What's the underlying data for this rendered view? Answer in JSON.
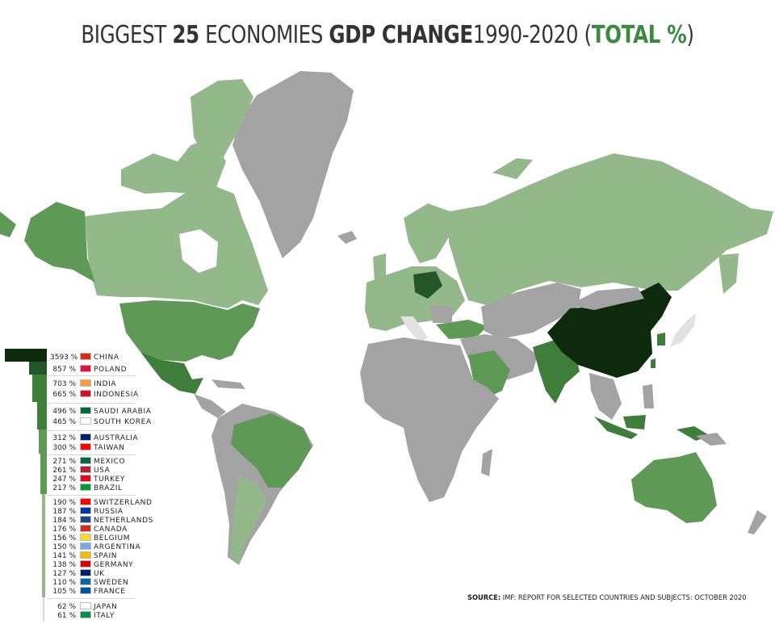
{
  "title": {
    "part1": "BIGGEST ",
    "part2": "25",
    "part3": " ECONOMIES ",
    "part4": "GDP CHANGE",
    "part5": "1990-2020 (",
    "part6": "TOTAL %",
    "part7": ")"
  },
  "colors": {
    "very_high": "#0d2a0d",
    "high": "#24562a",
    "mid_high": "#3e7d3a",
    "mid": "#5e9a55",
    "low": "#93b98a",
    "no_data": "#a3a3a3",
    "title_accent": "#3b8a3e"
  },
  "legend": [
    {
      "value": "3593 %",
      "country": "CHINA",
      "flag": "#de2910"
    },
    {
      "value": "857 %",
      "country": "POLAND",
      "flag": "#dc143c"
    },
    {
      "value": "703 %",
      "country": "INDIA",
      "flag": "#ff9933"
    },
    {
      "value": "665 %",
      "country": "INDONESIA",
      "flag": "#ce1126"
    },
    {
      "value": "496 %",
      "country": "SAUDI ARABIA",
      "flag": "#006c35"
    },
    {
      "value": "465 %",
      "country": "SOUTH KOREA",
      "flag": "#ffffff"
    },
    {
      "value": "312 %",
      "country": "AUSTRALIA",
      "flag": "#012169"
    },
    {
      "value": "300 %",
      "country": "TAIWAN",
      "flag": "#fe0000"
    },
    {
      "value": "271 %",
      "country": "MEXICO",
      "flag": "#006847"
    },
    {
      "value": "261 %",
      "country": "USA",
      "flag": "#b22234"
    },
    {
      "value": "247 %",
      "country": "TURKEY",
      "flag": "#e30a17"
    },
    {
      "value": "217 %",
      "country": "BRAZIL",
      "flag": "#009c3b"
    },
    {
      "value": "190 %",
      "country": "SWITZERLAND",
      "flag": "#ff0000"
    },
    {
      "value": "187 %",
      "country": "RUSSIA",
      "flag": "#0039a6"
    },
    {
      "value": "184 %",
      "country": "NETHERLANDS",
      "flag": "#21468b"
    },
    {
      "value": "176 %",
      "country": "CANADA",
      "flag": "#d52b1e"
    },
    {
      "value": "156 %",
      "country": "BELGIUM",
      "flag": "#fdda24"
    },
    {
      "value": "150 %",
      "country": "ARGENTINA",
      "flag": "#74acdf"
    },
    {
      "value": "141 %",
      "country": "SPAIN",
      "flag": "#f1bf00"
    },
    {
      "value": "138 %",
      "country": "GERMANY",
      "flag": "#dd0000"
    },
    {
      "value": "127 %",
      "country": "UK",
      "flag": "#012169"
    },
    {
      "value": "110 %",
      "country": "SWEDEN",
      "flag": "#006aa7"
    },
    {
      "value": "105 %",
      "country": "FRANCE",
      "flag": "#0055a4"
    },
    {
      "value": "62 %",
      "country": "JAPAN",
      "flag": "#ffffff"
    },
    {
      "value": "61 %",
      "country": "ITALY",
      "flag": "#009246"
    }
  ],
  "source": {
    "label": "SOURCE:",
    "text": " IMF: REPORT FOR SELECTED COUNTRIES AND SUBJECTS: OCTOBER 2020"
  }
}
